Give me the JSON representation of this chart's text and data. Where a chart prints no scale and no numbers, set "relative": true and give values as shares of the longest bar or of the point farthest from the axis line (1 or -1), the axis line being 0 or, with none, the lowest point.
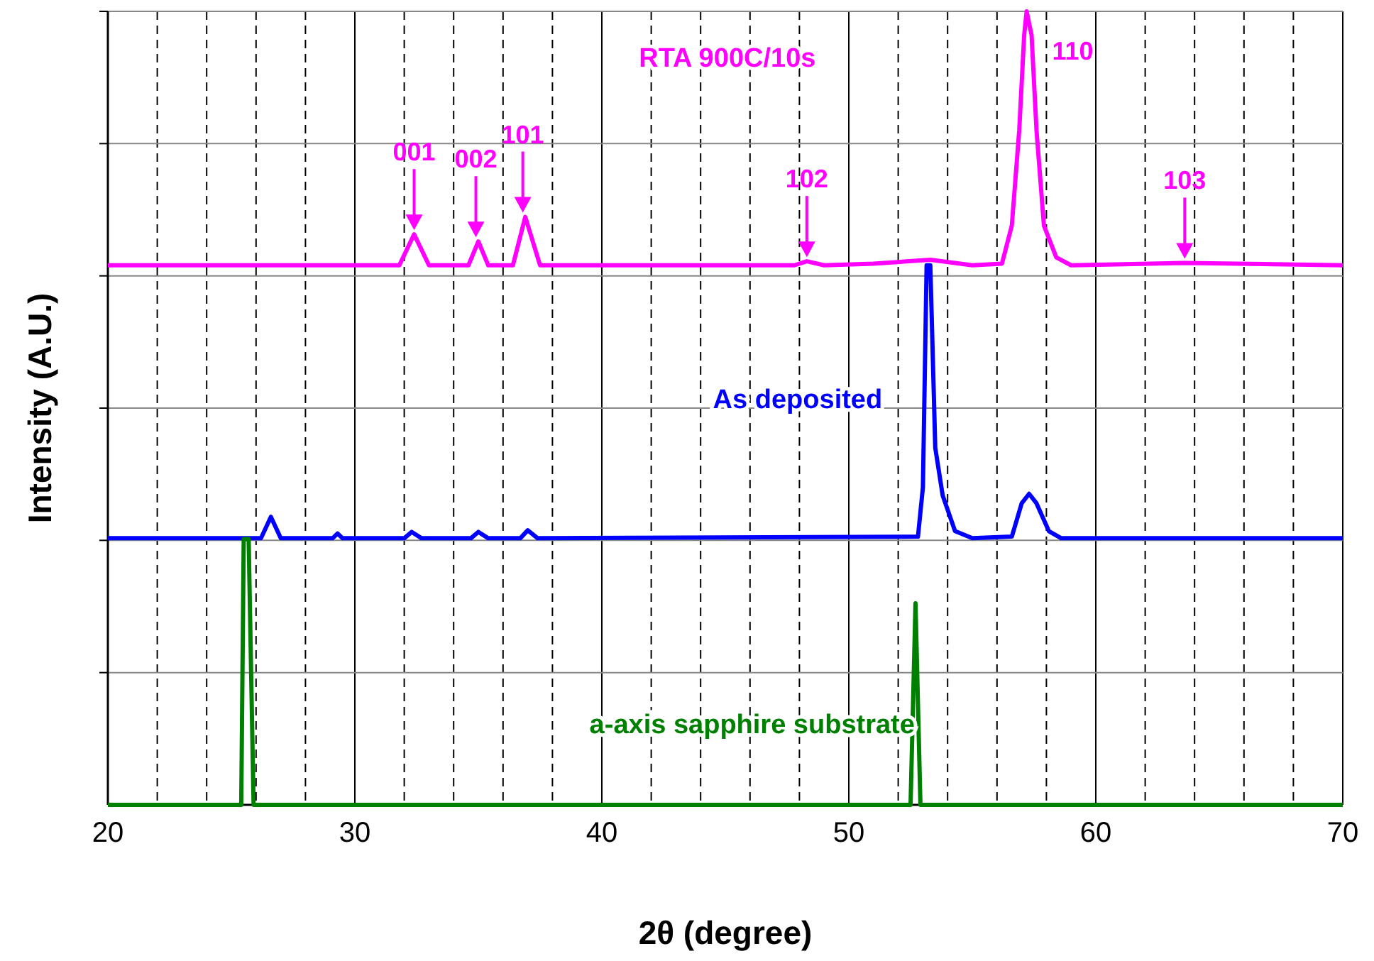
{
  "chart_data": {
    "type": "line",
    "relative": true,
    "xlabel": "2θ (degree)",
    "ylabel": "Intensity (A.U.)",
    "xlim": [
      20,
      70
    ],
    "xticks": [
      20,
      {
        "value": 22,
        "label": null
      },
      {
        "value": 24,
        "label": null
      },
      {
        "value": 26,
        "label": null
      },
      {
        "value": 28,
        "label": null
      },
      30,
      {
        "value": 32,
        "label": null
      },
      {
        "value": 34,
        "label": null
      },
      {
        "value": 36,
        "label": null
      },
      {
        "value": 38,
        "label": null
      },
      40,
      {
        "value": 42,
        "label": null
      },
      {
        "value": 44,
        "label": null
      },
      {
        "value": 46,
        "label": null
      },
      {
        "value": 48,
        "label": null
      },
      50,
      {
        "value": 52,
        "label": null
      },
      {
        "value": 54,
        "label": null
      },
      {
        "value": 56,
        "label": null
      },
      {
        "value": 58,
        "label": null
      },
      60,
      {
        "value": 62,
        "label": null
      },
      {
        "value": 64,
        "label": null
      },
      {
        "value": 66,
        "label": null
      },
      {
        "value": 68,
        "label": null
      },
      70
    ],
    "grid": true,
    "line_style": "solid",
    "marker": "none",
    "series": [
      {
        "name": "RTA 900C/10s",
        "color": "#ff00ff",
        "x": [
          20,
          31.8,
          32.4,
          33,
          34.6,
          35.0,
          35.4,
          36.4,
          36.9,
          37.5,
          47.8,
          48.3,
          49,
          51,
          53.3,
          55,
          56.2,
          56.6,
          56.9,
          57.1,
          57.2,
          57.4,
          57.6,
          57.9,
          58.4,
          59,
          63.6,
          70
        ],
        "values": [
          0.68,
          0.68,
          0.719,
          0.68,
          0.68,
          0.71,
          0.68,
          0.68,
          0.741,
          0.68,
          0.68,
          0.685,
          0.68,
          0.682,
          0.687,
          0.68,
          0.682,
          0.73,
          0.85,
          0.97,
          1.0,
          0.97,
          0.85,
          0.73,
          0.69,
          0.68,
          0.683,
          0.68
        ]
      },
      {
        "name": "As deposited",
        "color": "#0000ff",
        "x": [
          20,
          26.2,
          26.6,
          27,
          29.1,
          29.3,
          29.5,
          32,
          32.3,
          32.7,
          34.7,
          35,
          35.4,
          36.7,
          37,
          37.4,
          52.8,
          53.0,
          53.15,
          53.3,
          53.5,
          53.8,
          54.3,
          55,
          56.6,
          57.0,
          57.3,
          57.6,
          58.1,
          58.6,
          70
        ],
        "values": [
          0.336,
          0.336,
          0.363,
          0.336,
          0.336,
          0.342,
          0.336,
          0.336,
          0.344,
          0.336,
          0.336,
          0.344,
          0.336,
          0.336,
          0.346,
          0.336,
          0.338,
          0.4,
          0.68,
          0.68,
          0.45,
          0.39,
          0.345,
          0.336,
          0.338,
          0.38,
          0.392,
          0.38,
          0.345,
          0.336,
          0.336
        ]
      },
      {
        "name": "a-axis sapphire substrate",
        "color": "#008000",
        "x": [
          20,
          25.4,
          25.5,
          25.7,
          25.9,
          52.5,
          52.7,
          52.9,
          70
        ],
        "values": [
          0,
          0,
          0.335,
          0.335,
          0,
          0,
          0.254,
          0,
          0
        ]
      }
    ],
    "annotations": [
      {
        "text": "001",
        "x": 32.4,
        "y": 0.719
      },
      {
        "text": "002",
        "x": 34.9,
        "y": 0.71
      },
      {
        "text": "101",
        "x": 36.8,
        "y": 0.741
      },
      {
        "text": "102",
        "x": 48.3,
        "y": 0.685
      },
      {
        "text": "110",
        "x": 57.2,
        "y": 1.0
      },
      {
        "text": "103",
        "x": 63.6,
        "y": 0.683
      }
    ]
  }
}
